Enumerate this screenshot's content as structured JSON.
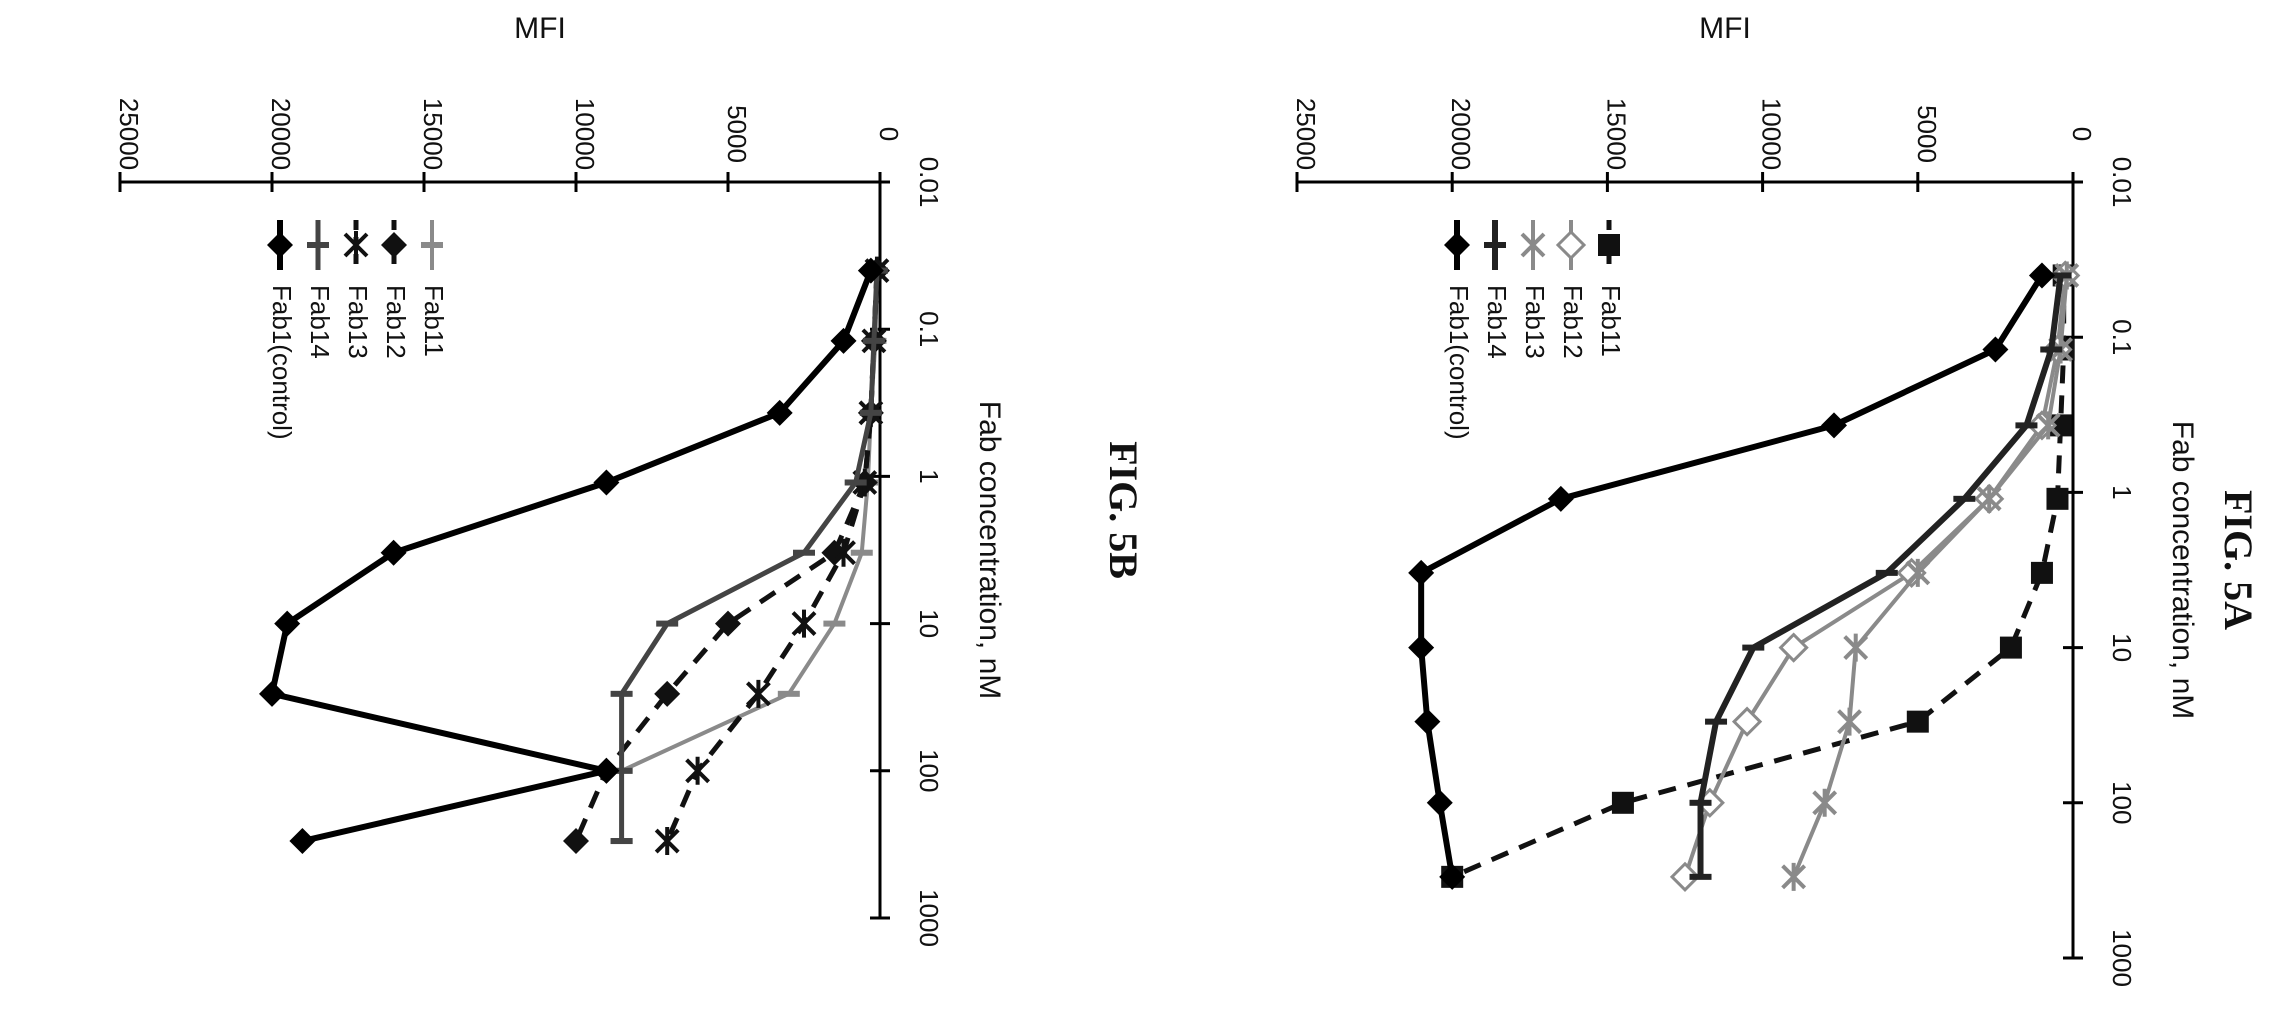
{
  "chart_data": [
    {
      "figure_label": "FIG. 5A",
      "type": "line",
      "orientation_note": "rotated 90 degrees",
      "xlabel": "Fab concentration, nM",
      "ylabel": "MFI",
      "x_scale": "log",
      "xlim": [
        0.01,
        1000
      ],
      "ylim": [
        0,
        25000
      ],
      "x_ticks": [
        "0.01",
        "0.1",
        "1",
        "10",
        "100",
        "1000"
      ],
      "y_ticks": [
        "0",
        "5000",
        "10000",
        "15000",
        "20000",
        "25000"
      ],
      "legend": "upper-left",
      "series": [
        {
          "name": "Fab11",
          "color": "#111111",
          "dash": "18,12",
          "marker": "square",
          "width": 5,
          "x": [
            0.04,
            0.12,
            0.37,
            1.1,
            3.3,
            10,
            30,
            100,
            300
          ],
          "y": [
            300,
            300,
            400,
            500,
            1000,
            2000,
            5000,
            14500,
            20000
          ]
        },
        {
          "name": "Fab12",
          "color": "#8a8a8a",
          "dash": "",
          "marker": "diamond-open",
          "width": 4,
          "x": [
            0.04,
            0.12,
            0.37,
            1.1,
            3.3,
            10,
            30,
            100,
            300
          ],
          "y": [
            250,
            500,
            1000,
            2700,
            5200,
            9000,
            10500,
            11700,
            12500
          ]
        },
        {
          "name": "Fab13",
          "color": "#8a8a8a",
          "dash": "",
          "marker": "star",
          "width": 4,
          "x": [
            0.04,
            0.12,
            0.37,
            1.1,
            3.3,
            10,
            30,
            100,
            300
          ],
          "y": [
            200,
            400,
            800,
            2700,
            5000,
            7000,
            7200,
            8000,
            9000
          ]
        },
        {
          "name": "Fab14",
          "color": "#222222",
          "dash": "",
          "marker": "bar",
          "width": 6,
          "x": [
            0.04,
            0.12,
            0.37,
            1.1,
            3.3,
            10,
            30,
            100,
            300
          ],
          "y": [
            400,
            700,
            1500,
            3500,
            6000,
            10300,
            11500,
            12000,
            12000
          ]
        },
        {
          "name": "Fab1(control)",
          "color": "#000000",
          "dash": "",
          "marker": "diamond",
          "width": 6,
          "x": [
            0.04,
            0.12,
            0.37,
            1.1,
            3.3,
            10,
            30,
            100,
            300
          ],
          "y": [
            1000,
            2500,
            7700,
            16500,
            21000,
            21000,
            20800,
            20400,
            20000
          ]
        }
      ]
    },
    {
      "figure_label": "FIG. 5B",
      "type": "line",
      "orientation_note": "rotated 90 degrees",
      "xlabel": "Fab concentration, nM",
      "ylabel": "MFI",
      "x_scale": "log",
      "xlim": [
        0.01,
        1000
      ],
      "ylim": [
        0,
        25000
      ],
      "x_ticks": [
        "0.01",
        "0.1",
        "1",
        "10",
        "100",
        "1000"
      ],
      "y_ticks": [
        "0",
        "5000",
        "10000",
        "15000",
        "20000",
        "25000"
      ],
      "legend": "upper-left",
      "series": [
        {
          "name": "Fab11",
          "color": "#8a8a8a",
          "dash": "",
          "marker": "bar",
          "width": 4,
          "x": [
            0.04,
            0.12,
            0.37,
            1.1,
            3.3,
            10,
            30,
            100,
            300
          ],
          "y": [
            100,
            150,
            300,
            400,
            600,
            1500,
            3000,
            8500,
            8500
          ]
        },
        {
          "name": "Fab12",
          "color": "#111111",
          "dash": "18,12",
          "marker": "diamond",
          "width": 5,
          "x": [
            0.04,
            0.12,
            0.37,
            1.1,
            3.3,
            10,
            30,
            100,
            300
          ],
          "y": [
            100,
            200,
            300,
            500,
            1500,
            5000,
            7000,
            9000,
            10000
          ]
        },
        {
          "name": "Fab13",
          "color": "#111111",
          "dash": "18,12",
          "marker": "star",
          "width": 5,
          "x": [
            0.04,
            0.12,
            0.37,
            1.1,
            3.3,
            10,
            30,
            100,
            300
          ],
          "y": [
            100,
            200,
            300,
            500,
            1200,
            2500,
            4000,
            6000,
            7000
          ]
        },
        {
          "name": "Fab14",
          "color": "#444444",
          "dash": "",
          "marker": "bar",
          "width": 5,
          "x": [
            0.04,
            0.12,
            0.37,
            1.1,
            3.3,
            10,
            30,
            100,
            300
          ],
          "y": [
            100,
            200,
            300,
            800,
            2500,
            7000,
            8500,
            8500,
            8500
          ]
        },
        {
          "name": "Fab1(control)",
          "color": "#000000",
          "dash": "",
          "marker": "diamond",
          "width": 6,
          "x": [
            0.04,
            0.12,
            0.37,
            1.1,
            3.3,
            10,
            30,
            100,
            300
          ],
          "y": [
            300,
            1200,
            3300,
            9000,
            16000,
            19500,
            20000,
            9000,
            19000
          ]
        }
      ]
    }
  ]
}
